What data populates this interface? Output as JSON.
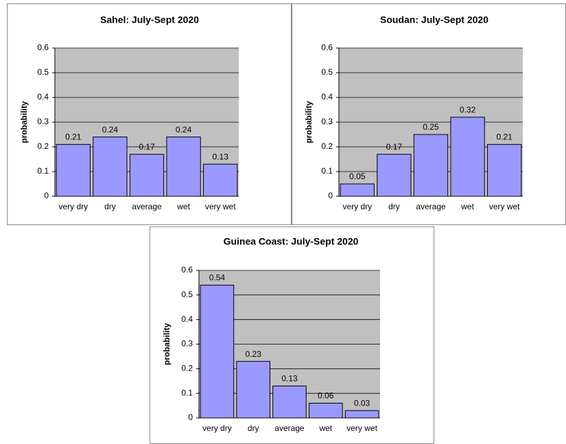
{
  "chart_data": [
    {
      "type": "bar",
      "title": "Sahel: July-Sept 2020",
      "y_label": "probability",
      "categories": [
        "very dry",
        "dry",
        "average",
        "wet",
        "very wet"
      ],
      "values": [
        0.21,
        0.24,
        0.17,
        0.24,
        0.13
      ],
      "color": "#9999ff",
      "plot_background": "#c0c0c0",
      "ylim": [
        0,
        0.6
      ],
      "yticks": [
        0,
        0.1,
        0.2,
        0.3,
        0.4,
        0.5,
        0.6
      ],
      "grid": true
    },
    {
      "type": "bar",
      "title": "Soudan: July-Sept 2020",
      "y_label": "probability",
      "categories": [
        "very dry",
        "dry",
        "average",
        "wet",
        "very wet"
      ],
      "values": [
        0.05,
        0.17,
        0.25,
        0.32,
        0.21
      ],
      "color": "#9999ff",
      "plot_background": "#c0c0c0",
      "ylim": [
        0,
        0.6
      ],
      "yticks": [
        0,
        0.1,
        0.2,
        0.3,
        0.4,
        0.5,
        0.6
      ],
      "grid": true
    },
    {
      "type": "bar",
      "title": "Guinea Coast: July-Sept 2020",
      "y_label": "probability",
      "categories": [
        "very dry",
        "dry",
        "average",
        "wet",
        "very wet"
      ],
      "values": [
        0.54,
        0.23,
        0.13,
        0.06,
        0.03
      ],
      "color": "#9999ff",
      "plot_background": "#c0c0c0",
      "ylim": [
        0,
        0.6
      ],
      "yticks": [
        0,
        0.1,
        0.2,
        0.3,
        0.4,
        0.5,
        0.6
      ],
      "grid": true
    }
  ]
}
